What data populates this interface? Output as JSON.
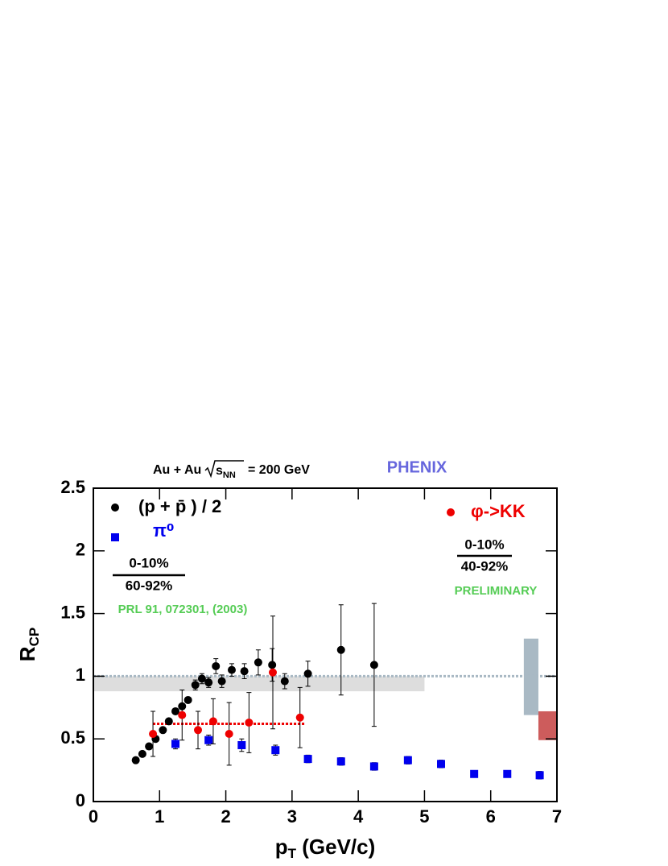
{
  "chart_data": {
    "type": "scatter",
    "title": {
      "pre": "Au + Au",
      "root": "s",
      "sub": "NN",
      "post": "= 200 GeV"
    },
    "experiment": "PHENIX",
    "xlabel": {
      "main": "p",
      "sub": "T",
      "rest": " (GeV/c)"
    },
    "ylabel": {
      "main": "R",
      "sub": "CP"
    },
    "xlim": [
      0,
      7
    ],
    "ylim": [
      0,
      2.5
    ],
    "xticks": [
      0,
      1,
      2,
      3,
      4,
      5,
      6,
      7
    ],
    "yticks": [
      0,
      0.5,
      1,
      1.5,
      2,
      2.5
    ],
    "series": [
      {
        "name": "(p + p̄ ) / 2",
        "color": "#000000",
        "marker": "circle",
        "x": [
          0.64,
          0.74,
          0.84,
          0.94,
          1.05,
          1.14,
          1.24,
          1.34,
          1.43,
          1.54,
          1.64,
          1.74,
          1.85,
          1.94,
          2.09,
          2.28,
          2.49,
          2.7,
          2.89,
          3.24,
          3.74,
          4.24
        ],
        "values": [
          0.33,
          0.38,
          0.44,
          0.5,
          0.57,
          0.64,
          0.72,
          0.76,
          0.81,
          0.93,
          0.98,
          0.95,
          1.08,
          0.96,
          1.05,
          1.04,
          1.11,
          1.09,
          0.96,
          1.02,
          1.21,
          1.09
        ],
        "errors": [
          0.01,
          0.01,
          0.01,
          0.01,
          0.01,
          0.01,
          0.02,
          0.02,
          0.02,
          0.04,
          0.04,
          0.04,
          0.06,
          0.05,
          0.05,
          0.06,
          0.1,
          0.13,
          0.06,
          0.1,
          0.36,
          0.49
        ]
      },
      {
        "name": "π⁰",
        "color": "#0000ee",
        "marker": "square",
        "x": [
          1.24,
          1.74,
          2.24,
          2.75,
          3.24,
          3.74,
          4.24,
          4.75,
          5.25,
          5.75,
          6.25,
          6.74
        ],
        "values": [
          0.46,
          0.49,
          0.45,
          0.41,
          0.34,
          0.32,
          0.28,
          0.33,
          0.3,
          0.22,
          0.22,
          0.21
        ],
        "errors": [
          0.04,
          0.04,
          0.05,
          0.04,
          0.03,
          0.03,
          0.03,
          0.03,
          0.03,
          0.02,
          0.02,
          0.03
        ]
      },
      {
        "name": "φ->KK",
        "color": "#ee0000",
        "marker": "circle",
        "x": [
          0.9,
          1.34,
          1.58,
          1.81,
          2.05,
          2.35,
          2.71,
          3.12
        ],
        "values": [
          0.54,
          0.69,
          0.57,
          0.64,
          0.54,
          0.63,
          1.03,
          0.67
        ],
        "errors": [
          0.18,
          0.2,
          0.15,
          0.18,
          0.25,
          0.24,
          0.45,
          0.24
        ]
      }
    ],
    "boxes": [
      {
        "x": [
          0,
          5
        ],
        "y": [
          0.88,
          1.0
        ],
        "color": "#dddddd"
      },
      {
        "x": [
          6.5,
          6.72
        ],
        "y": [
          0.69,
          1.3
        ],
        "color": "#a9b9c4"
      },
      {
        "x": [
          6.72,
          7
        ],
        "y": [
          0.49,
          0.72
        ],
        "color": "#cd5c5c"
      }
    ],
    "hlines": [
      {
        "y": 1,
        "x": [
          0,
          7
        ],
        "color": "#a9b9c4"
      },
      {
        "y": 0.62,
        "x": [
          0.9,
          3.2
        ],
        "color": "#ee0000"
      }
    ],
    "annotations": {
      "left_ratio": {
        "num": "0-10%",
        "den": "60-92%"
      },
      "right_ratio": {
        "num": "0-10%",
        "den": "40-92%"
      },
      "reference": "PRL 91, 072301, (2003)",
      "status": "PRELIMINARY"
    }
  }
}
